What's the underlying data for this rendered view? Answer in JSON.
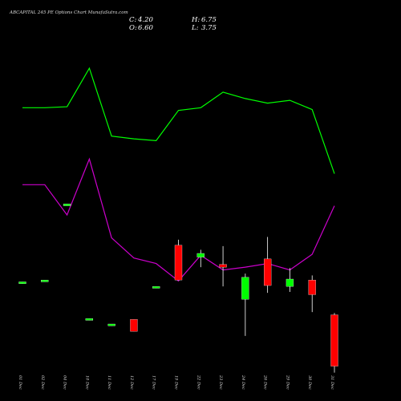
{
  "chart_data": {
    "type": "candlestick",
    "title": "ABCAPITAL 245 PE Options Chart MunafaSutra.com",
    "summary": {
      "close_label": "C:",
      "close": "4.20",
      "high_label": "H:",
      "high": "6.75",
      "open_label": "O:",
      "open": "6.60",
      "low_label": "L:",
      "low": "3.75"
    },
    "categories": [
      "01 Dec",
      "02 Dec",
      "04 Dec",
      "10 Dec",
      "11 Dec",
      "12 Dec",
      "17 Dec",
      "19 Dec",
      "22 Dec",
      "23 Dec",
      "24 Dec",
      "26 Dec",
      "29 Dec",
      "30 Dec",
      "31 Dec"
    ],
    "candles": [
      {
        "open": 48.0,
        "high": 48.0,
        "low": 47.8,
        "close": 47.8,
        "color": "#00ff00"
      },
      {
        "open": 48.2,
        "high": 48.2,
        "low": 48.0,
        "close": 48.0,
        "color": "#00ff00"
      },
      {
        "open": 56.5,
        "high": 56.5,
        "low": 56.3,
        "close": 56.3,
        "color": "#00ff00"
      },
      {
        "open": 44.0,
        "high": 44.0,
        "low": 43.8,
        "close": 43.8,
        "color": "#00ff00"
      },
      {
        "open": 43.4,
        "high": 43.4,
        "low": 43.2,
        "close": 43.2,
        "color": "#00ff00"
      },
      {
        "open": 43.9,
        "high": 43.9,
        "low": 42.6,
        "close": 42.6,
        "color": "#ff0000"
      },
      {
        "open": 47.5,
        "high": 47.5,
        "low": 47.3,
        "close": 47.3,
        "color": "#00ff00"
      },
      {
        "open": 52.0,
        "high": 52.6,
        "low": 48.2,
        "close": 48.2,
        "color": "#ff0000"
      },
      {
        "open": 50.7,
        "high": 51.5,
        "low": 49.6,
        "close": 51.1,
        "color": "#00ff00"
      },
      {
        "open": 49.9,
        "high": 51.9,
        "low": 47.5,
        "close": 49.6,
        "color": "#ff0000"
      },
      {
        "open": 46.1,
        "high": 48.9,
        "low": 42.1,
        "close": 48.5,
        "color": "#00ff00"
      },
      {
        "open": 50.5,
        "high": 52.9,
        "low": 46.8,
        "close": 47.6,
        "color": "#ff0000"
      },
      {
        "open": 47.5,
        "high": 49.5,
        "low": 46.9,
        "close": 48.3,
        "color": "#00ff00"
      },
      {
        "open": 48.2,
        "high": 48.7,
        "low": 44.7,
        "close": 46.6,
        "color": "#ff0000"
      },
      {
        "open": 44.4,
        "high": 44.6,
        "low": 38.1,
        "close": 38.8,
        "color": "#ff0000"
      }
    ],
    "lines": [
      {
        "color": "#00ff00",
        "values": [
          67.0,
          67.0,
          67.1,
          71.3,
          63.9,
          63.6,
          63.4,
          66.7,
          67.0,
          68.7,
          68.0,
          67.5,
          67.8,
          66.8,
          59.8
        ]
      },
      {
        "color": "#cc00cc",
        "values": [
          58.6,
          58.6,
          55.3,
          61.4,
          52.8,
          50.6,
          50.0,
          48.1,
          50.9,
          49.3,
          49.6,
          50.0,
          49.3,
          51.0,
          56.3
        ]
      }
    ],
    "ylim": [
      35,
      77
    ],
    "grid": false,
    "colors": {
      "background": "#000000",
      "up": "#00ff00",
      "down": "#ff0000",
      "text": "#ffffff"
    }
  }
}
